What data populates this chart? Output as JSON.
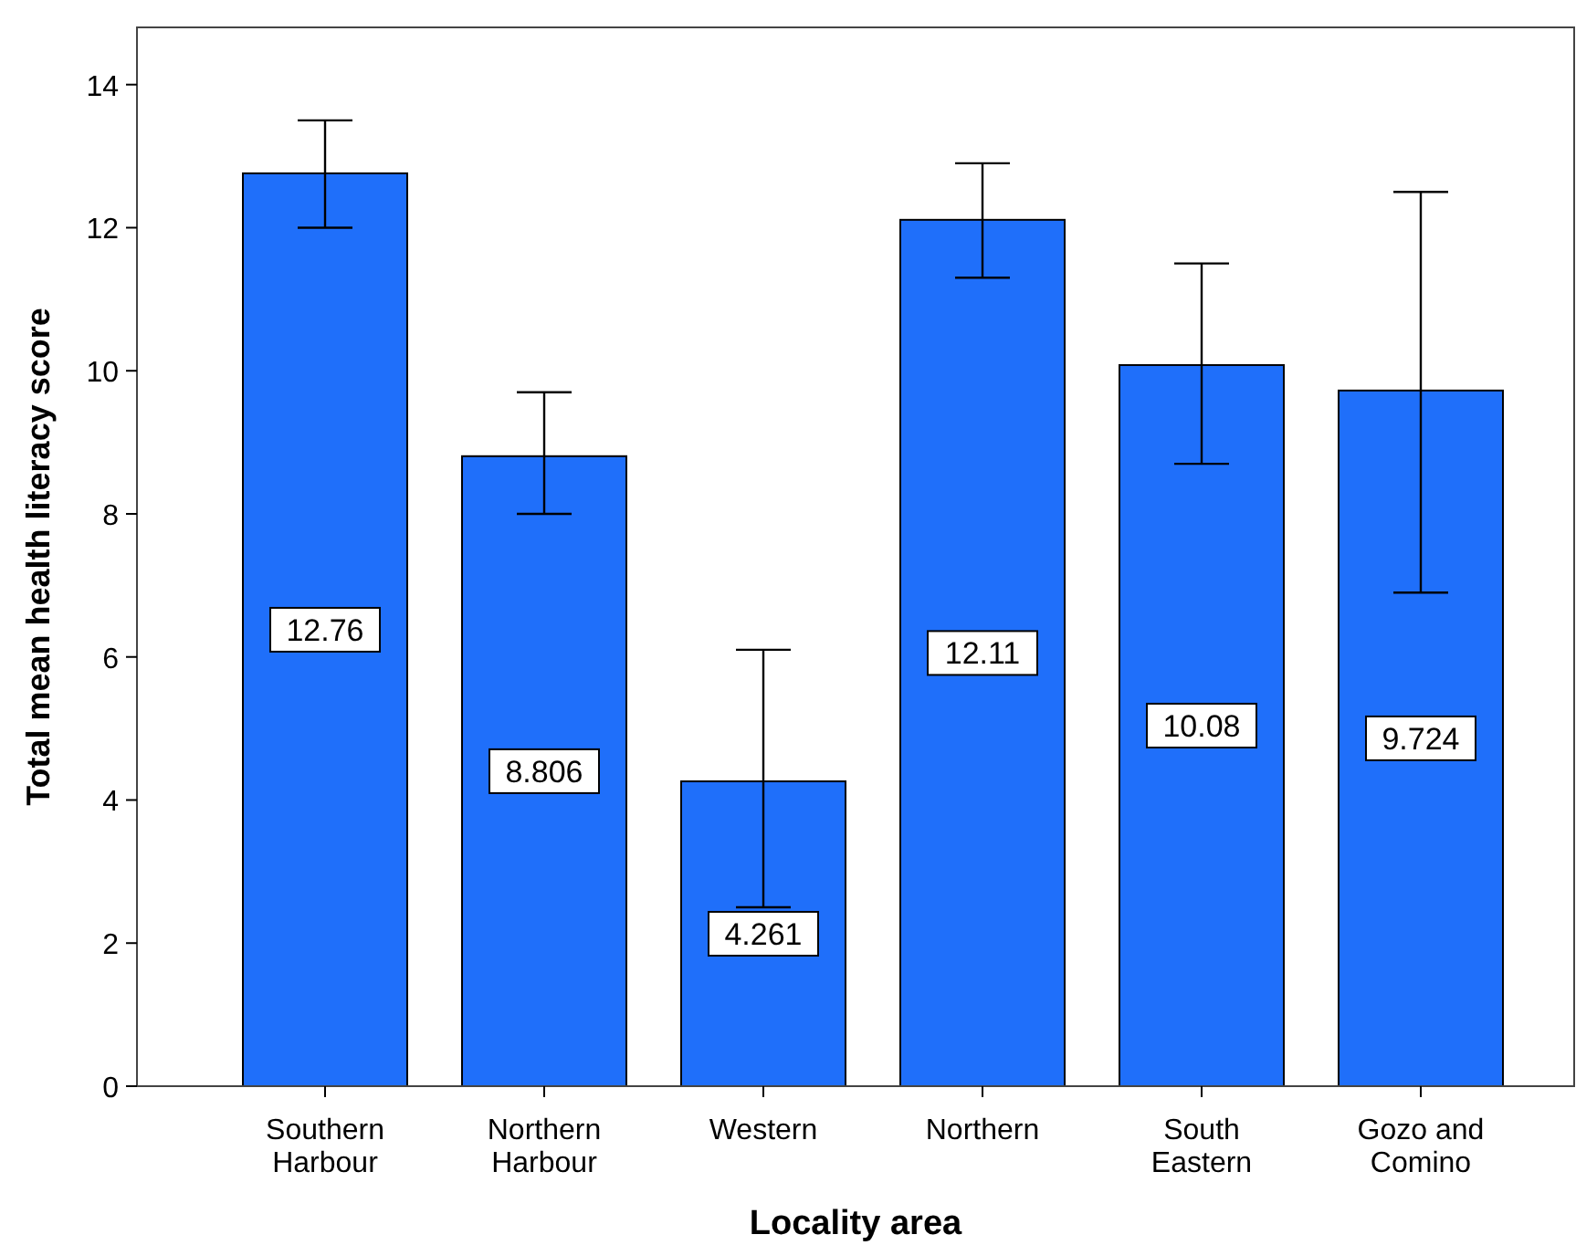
{
  "chart_data": {
    "type": "bar",
    "xlabel": "Locality area",
    "ylabel": "Total mean health literacy score",
    "categories": [
      "Southern Harbour",
      "Northern Harbour",
      "Western",
      "Northern",
      "South Eastern",
      "Gozo and Comino"
    ],
    "values": [
      12.76,
      8.806,
      4.261,
      12.11,
      10.08,
      9.724
    ],
    "errors": [
      [
        12.0,
        13.5
      ],
      [
        8.0,
        9.7
      ],
      [
        2.5,
        6.1
      ],
      [
        11.3,
        12.9
      ],
      [
        8.7,
        11.5
      ],
      [
        6.9,
        12.5
      ]
    ],
    "color": "#1f6ffa",
    "ylim": [
      0,
      14.8
    ],
    "yticks": [
      0,
      2,
      4,
      6,
      8,
      10,
      12,
      14
    ],
    "grid": false,
    "data_labels": true
  }
}
